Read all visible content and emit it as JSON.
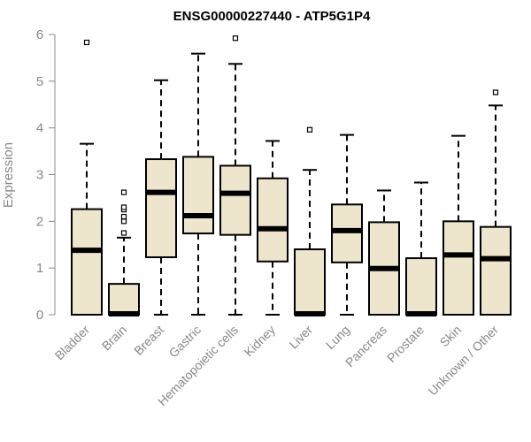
{
  "chart_data": {
    "type": "boxplot",
    "title": "ENSG00000227440 - ATP5G1P4",
    "ylabel": "Expression",
    "xlabel": "",
    "ylim": [
      0,
      6
    ],
    "yticks": [
      0,
      1,
      2,
      3,
      4,
      5,
      6
    ],
    "box_fill": "#ede6cc",
    "categories": [
      "Bladder",
      "Brain",
      "Breast",
      "Gastric",
      "Hematopoietic cells",
      "Kidney",
      "Liver",
      "Lung",
      "Pancreas",
      "Prostate",
      "Skin",
      "Unknown / Other"
    ],
    "boxes": [
      {
        "min": 0,
        "q1": 0,
        "median": 1.38,
        "q3": 2.26,
        "max": 3.66,
        "outliers": [
          5.83
        ]
      },
      {
        "min": 0,
        "q1": 0,
        "median": 0.02,
        "q3": 0.66,
        "max": 1.65,
        "outliers": [
          1.75,
          2.0,
          2.1,
          2.25,
          2.3,
          2.62
        ]
      },
      {
        "min": 0,
        "q1": 1.23,
        "median": 2.62,
        "q3": 3.33,
        "max": 5.02,
        "outliers": []
      },
      {
        "min": 0,
        "q1": 1.74,
        "median": 2.12,
        "q3": 3.38,
        "max": 5.59,
        "outliers": []
      },
      {
        "min": 0,
        "q1": 1.71,
        "median": 2.6,
        "q3": 3.19,
        "max": 5.37,
        "outliers": [
          5.92
        ]
      },
      {
        "min": 0,
        "q1": 1.14,
        "median": 1.84,
        "q3": 2.92,
        "max": 3.72,
        "outliers": []
      },
      {
        "min": 0,
        "q1": 0,
        "median": 0.02,
        "q3": 1.4,
        "max": 3.1,
        "outliers": [
          3.96
        ]
      },
      {
        "min": 0,
        "q1": 1.12,
        "median": 1.8,
        "q3": 2.36,
        "max": 3.85,
        "outliers": []
      },
      {
        "min": 0,
        "q1": 0,
        "median": 0.99,
        "q3": 1.98,
        "max": 2.66,
        "outliers": []
      },
      {
        "min": 0,
        "q1": 0,
        "median": 0.02,
        "q3": 1.21,
        "max": 2.83,
        "outliers": []
      },
      {
        "min": 0,
        "q1": 0,
        "median": 1.28,
        "q3": 2.0,
        "max": 3.83,
        "outliers": []
      },
      {
        "min": 0,
        "q1": 0,
        "median": 1.2,
        "q3": 1.88,
        "max": 4.48,
        "outliers": [
          4.76
        ]
      }
    ]
  }
}
